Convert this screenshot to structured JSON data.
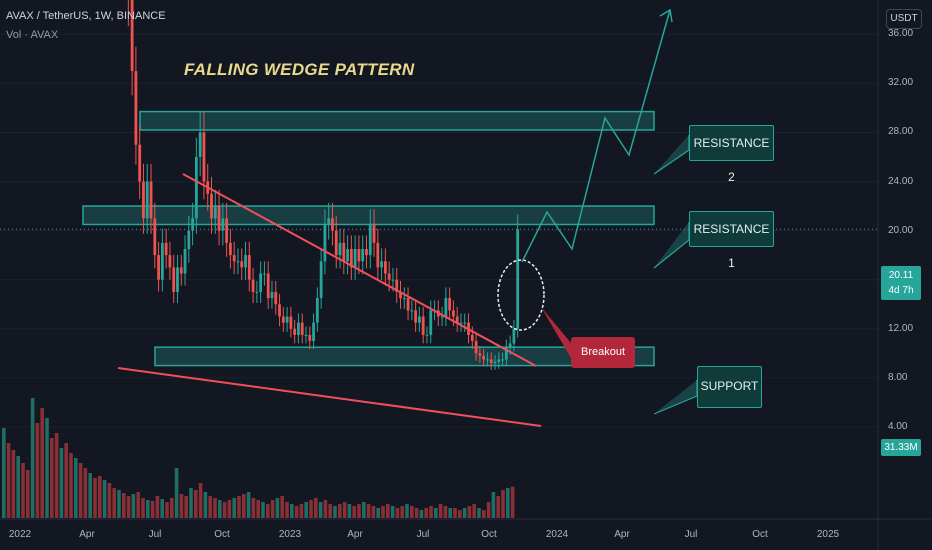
{
  "header": {
    "title": "AVAX / TetherUS, 1W, BINANCE",
    "volume_label": "Vol · AVAX"
  },
  "annotations": {
    "pattern_title": "FALLING WEDGE PATTERN",
    "resistance2": "RESISTANCE 2",
    "resistance1": "RESISTANCE 1",
    "support": "SUPPORT",
    "breakout": "Breakout"
  },
  "price_axis": {
    "currency": "USDT",
    "ticks": [
      "36.00",
      "32.00",
      "28.00",
      "24.00",
      "20.00",
      "16.00",
      "12.00",
      "8.00",
      "4.00"
    ],
    "last_price": "20.11",
    "countdown": "4d 7h",
    "last_volume": "31.33M"
  },
  "time_axis": {
    "ticks": [
      "2022",
      "Apr",
      "Jul",
      "Oct",
      "2023",
      "Apr",
      "Jul",
      "Oct",
      "2024",
      "Apr",
      "Jul",
      "Oct",
      "2025"
    ]
  },
  "colors": {
    "background": "#131722",
    "up": "#26a69a",
    "down": "#ef5350",
    "vol_up": "#1e6e66",
    "vol_down": "#8b2f36",
    "zone": "#26a69a",
    "trendline": "#f0505a",
    "breakout": "#b2283a"
  },
  "chart_data": {
    "type": "candlestick",
    "title": "FALLING WEDGE PATTERN",
    "symbol": "AVAX / TetherUS",
    "interval": "1W",
    "exchange": "BINANCE",
    "ylim": [
      0,
      42
    ],
    "zones": [
      {
        "name": "RESISTANCE 2",
        "low": 28.2,
        "high": 29.7
      },
      {
        "name": "RESISTANCE 1",
        "low": 20.5,
        "high": 22.0
      },
      {
        "name": "SUPPORT",
        "low": 9.0,
        "high": 10.5
      }
    ],
    "closes": [
      78,
      60,
      45,
      39,
      33,
      27,
      24,
      21,
      24,
      21,
      18,
      16,
      19,
      18,
      17,
      15,
      17,
      16.5,
      18.5,
      20,
      21,
      26,
      28,
      24,
      23,
      21,
      22,
      20,
      21,
      19,
      18,
      17.5,
      17.5,
      17,
      18,
      16,
      15,
      15,
      16.5,
      16.5,
      14.5,
      15,
      14,
      13,
      12.5,
      13,
      12,
      11.5,
      12.5,
      11.5,
      11.5,
      11,
      12.5,
      14.5,
      17.5,
      20.5,
      21,
      20,
      18,
      19,
      17.5,
      18.5,
      17,
      18.5,
      17.5,
      18.5,
      18,
      20.5,
      19,
      17,
      17.5,
      16.5,
      16,
      16,
      15,
      14.5,
      14.5,
      13.5,
      13.5,
      12.5,
      13,
      11.5,
      11.5,
      13.5,
      13.5,
      13,
      13,
      14.5,
      13.5,
      13,
      12.5,
      12.5,
      12.5,
      11.5,
      11,
      10,
      9.8,
      9.5,
      9.5,
      9.2,
      9.3,
      9.5,
      9.5,
      10.5,
      10.8,
      12,
      20.1
    ],
    "volume_millions": [
      90,
      75,
      68,
      62,
      55,
      48,
      120,
      95,
      110,
      100,
      80,
      85,
      70,
      75,
      65,
      60,
      55,
      50,
      45,
      40,
      42,
      38,
      35,
      30,
      28,
      25,
      22,
      24,
      26,
      20,
      18,
      17,
      22,
      19,
      16,
      20,
      50,
      24,
      22,
      30,
      28,
      35,
      26,
      22,
      20,
      18,
      16,
      18,
      20,
      22,
      24,
      26,
      20,
      18,
      16,
      14,
      18,
      20,
      22,
      16,
      14,
      12,
      14,
      16,
      18,
      20,
      16,
      18,
      14,
      12,
      14,
      16,
      14,
      12,
      14,
      16,
      14,
      12,
      10,
      12,
      14,
      12,
      10,
      12,
      14,
      12,
      10,
      8,
      10,
      12,
      10,
      14,
      12,
      10,
      10,
      8,
      10,
      12,
      14,
      10,
      8,
      16,
      26,
      22,
      28,
      30,
      31.33
    ]
  }
}
